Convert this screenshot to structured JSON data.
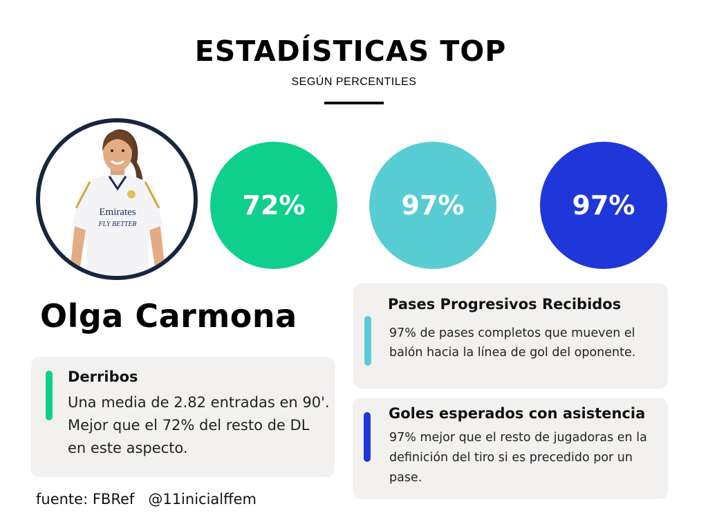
{
  "header": {
    "title": "ESTADÍSTICAS TOP",
    "subtitle": "SEGÚN PERCENTILES"
  },
  "player": {
    "name": "Olga Carmona",
    "kit_brand_line1": "Emirates",
    "kit_brand_line2": "FLY BETTER"
  },
  "percentiles": [
    {
      "value": "72%",
      "color": "#0fcf8c"
    },
    {
      "value": "97%",
      "color": "#58ccd3"
    },
    {
      "value": "97%",
      "color": "#1f37d9"
    }
  ],
  "cards": {
    "derribos": {
      "heading": "Derribos",
      "text": "Una media de 2.82 entradas en 90'. Mejor que el 72% del resto de DL en este aspecto.",
      "accent": "#0fcf8c"
    },
    "pases": {
      "heading": "Pases Progresivos Recibidos",
      "text": "97% de pases completos que mueven el balón hacia la línea de gol del oponente.",
      "accent": "#58ccd3"
    },
    "goles": {
      "heading": "Goles esperados con asistencia",
      "text": "97% mejor que el resto de jugadoras en la definición del tiro si es precedido por un pase.",
      "accent": "#1f37d9"
    }
  },
  "footer": {
    "source": "fuente: FBRef",
    "handle": "@11inicialffem"
  }
}
